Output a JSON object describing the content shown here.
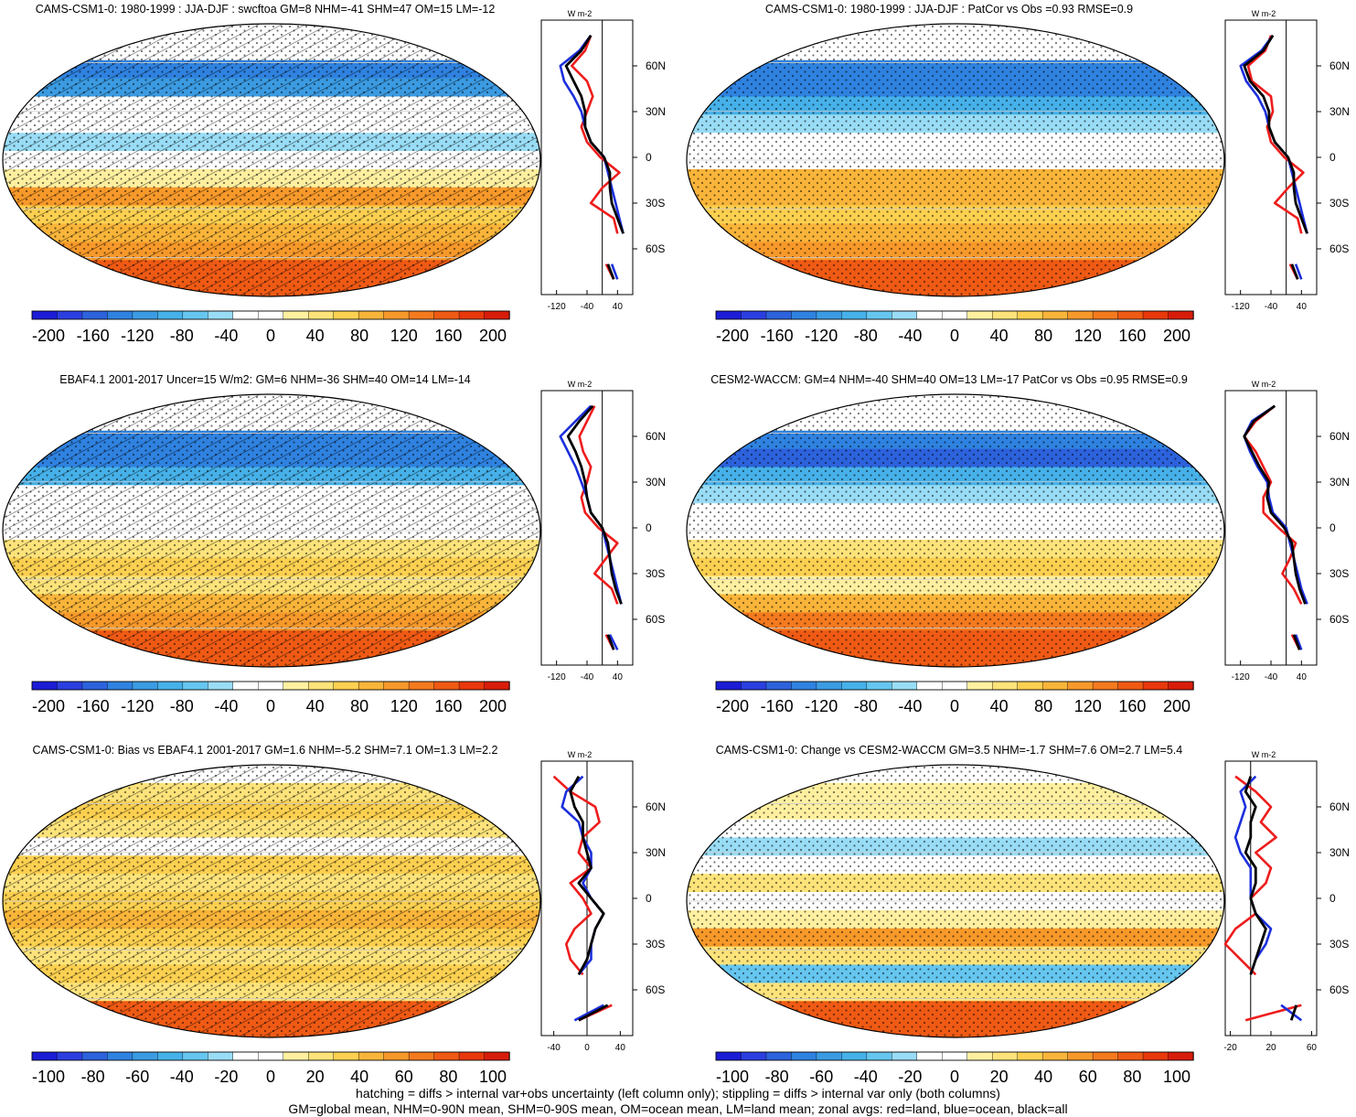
{
  "palette": [
    "#1c1cd6",
    "#2b3fe0",
    "#2c62dc",
    "#2f82e0",
    "#3b9be2",
    "#46b1e9",
    "#66c6ef",
    "#99dcf5",
    "#ffffff",
    "#ffffff",
    "#fff0a0",
    "#fde37a",
    "#fcd050",
    "#f9b53a",
    "#f7992a",
    "#f47a1e",
    "#ef5a14",
    "#e8380c",
    "#d81c0a"
  ],
  "line_colors": {
    "land": "#ee1c1c",
    "ocean": "#1c2fdc",
    "all": "#000000"
  },
  "footnotes": [
    "hatching = diffs > internal var+obs uncertainty (left column only); stippling = diffs > internal var only (both columns)",
    "GM=global mean, NHM=0-90N mean, SHM=0-90S mean, OM=ocean mean, LM=land mean; zonal avgs: red=land, blue=ocean, black=all"
  ],
  "chart_data": [
    {
      "type": "heatmap",
      "title": "CAMS-CSM1-0: 1980-1999 : JJA-DJF : swcftoa GM=8 NHM=-41 SHM=47 OM=15 LM=-12",
      "colorbar_ticks": [
        "-200",
        "-160",
        "-120",
        "-80",
        "-40",
        "0",
        "40",
        "80",
        "120",
        "160",
        "200"
      ],
      "zonal_unit": "W m-2",
      "zonal_x_ticks": [
        "-120",
        "-40",
        "40"
      ],
      "zonal_x_range": [
        -160,
        80
      ],
      "lat_ticks": [
        "60N",
        "30N",
        "0",
        "30S",
        "60S"
      ],
      "hatching": true,
      "stippling": true,
      "zonal_mean": {
        "lat": [
          80,
          70,
          60,
          50,
          40,
          30,
          20,
          10,
          0,
          -10,
          -20,
          -30,
          -40,
          -50,
          -60,
          -70,
          -80
        ],
        "land": [
          -30,
          -45,
          -80,
          -40,
          -25,
          -40,
          -55,
          -40,
          -5,
          45,
          0,
          -30,
          30,
          40,
          null,
          10,
          30
        ],
        "ocean": [
          -30,
          -60,
          -110,
          -100,
          -75,
          -55,
          -45,
          -30,
          5,
          15,
          25,
          35,
          45,
          55,
          null,
          25,
          40
        ],
        "all": [
          -30,
          -55,
          -95,
          -75,
          -55,
          -45,
          -45,
          -30,
          5,
          20,
          20,
          25,
          40,
          55,
          null,
          15,
          30
        ]
      }
    },
    {
      "type": "heatmap",
      "title": "CAMS-CSM1-0: 1980-1999 : JJA-DJF : PatCor vs Obs =0.93 RMSE=0.9",
      "colorbar_ticks": [
        "-200",
        "-160",
        "-120",
        "-80",
        "-40",
        "0",
        "40",
        "80",
        "120",
        "160",
        "200"
      ],
      "zonal_unit": "W m-2",
      "zonal_x_ticks": [
        "-120",
        "-40",
        "40"
      ],
      "zonal_x_range": [
        -160,
        80
      ],
      "lat_ticks": [
        "60N",
        "30N",
        "0",
        "30S",
        "60S"
      ],
      "hatching": false,
      "stippling": true,
      "zonal_mean": {
        "lat": [
          80,
          70,
          60,
          50,
          40,
          30,
          20,
          10,
          0,
          -10,
          -20,
          -30,
          -40,
          -50,
          -60,
          -70,
          -80
        ],
        "land": [
          -40,
          -55,
          -100,
          -90,
          -40,
          -35,
          -50,
          -40,
          -5,
          45,
          5,
          -30,
          30,
          40,
          null,
          10,
          30
        ],
        "ocean": [
          -35,
          -65,
          -120,
          -105,
          -75,
          -55,
          -45,
          -30,
          5,
          15,
          25,
          35,
          45,
          55,
          null,
          25,
          40
        ],
        "all": [
          -35,
          -60,
          -110,
          -95,
          -60,
          -45,
          -45,
          -30,
          5,
          20,
          20,
          25,
          40,
          55,
          null,
          15,
          30
        ]
      }
    },
    {
      "type": "heatmap",
      "title": "EBAF4.1 2001-2017 Uncer=15 W/m2: GM=6 NHM=-36 SHM=40 OM=14 LM=-14",
      "colorbar_ticks": [
        "-200",
        "-160",
        "-120",
        "-80",
        "-40",
        "0",
        "40",
        "80",
        "120",
        "160",
        "200"
      ],
      "zonal_unit": "W m-2",
      "zonal_x_ticks": [
        "-120",
        "-40",
        "40"
      ],
      "zonal_x_range": [
        -160,
        80
      ],
      "lat_ticks": [
        "60N",
        "30N",
        "0",
        "30S",
        "60S"
      ],
      "hatching": true,
      "stippling": true,
      "zonal_mean": {
        "lat": [
          80,
          70,
          60,
          50,
          40,
          30,
          20,
          10,
          0,
          -10,
          -20,
          -30,
          -40,
          -50,
          -60,
          -70,
          -80
        ],
        "land": [
          -20,
          -40,
          -60,
          -50,
          -30,
          -40,
          -55,
          -45,
          -10,
          40,
          10,
          -20,
          25,
          40,
          null,
          10,
          30
        ],
        "ocean": [
          -30,
          -70,
          -110,
          -90,
          -70,
          -55,
          -40,
          -30,
          0,
          10,
          20,
          30,
          40,
          50,
          null,
          20,
          40
        ],
        "all": [
          -25,
          -60,
          -90,
          -70,
          -55,
          -45,
          -40,
          -30,
          0,
          15,
          20,
          25,
          35,
          50,
          null,
          15,
          30
        ]
      }
    },
    {
      "type": "heatmap",
      "title": "CESM2-WACCM: GM=4 NHM=-40 SHM=40 OM=13 LM=-17 PatCor vs Obs =0.95 RMSE=0.9",
      "colorbar_ticks": [
        "-200",
        "-160",
        "-120",
        "-80",
        "-40",
        "0",
        "40",
        "80",
        "120",
        "160",
        "200"
      ],
      "zonal_unit": "W m-2",
      "zonal_x_ticks": [
        "-120",
        "-40",
        "40"
      ],
      "zonal_x_range": [
        -160,
        80
      ],
      "lat_ticks": [
        "60N",
        "30N",
        "0",
        "30S",
        "60S"
      ],
      "hatching": false,
      "stippling": true,
      "zonal_mean": {
        "lat": [
          80,
          70,
          60,
          50,
          40,
          30,
          20,
          10,
          0,
          -10,
          -20,
          -30,
          -40,
          -50,
          -60,
          -70,
          -80
        ],
        "land": [
          -30,
          -80,
          -110,
          -80,
          -60,
          -40,
          -60,
          -60,
          -20,
          25,
          10,
          -10,
          20,
          40,
          null,
          15,
          35
        ],
        "ocean": [
          -30,
          -90,
          -110,
          -95,
          -75,
          -50,
          -45,
          -35,
          0,
          10,
          20,
          30,
          40,
          55,
          null,
          25,
          40
        ],
        "all": [
          -30,
          -85,
          -110,
          -90,
          -70,
          -45,
          -50,
          -40,
          -5,
          15,
          20,
          25,
          35,
          50,
          null,
          20,
          35
        ]
      }
    },
    {
      "type": "heatmap",
      "title": "CAMS-CSM1-0: Bias vs EBAF4.1 2001-2017 GM=1.6 NHM=-5.2 SHM=7.1 OM=1.3 LM=2.2",
      "colorbar_ticks": [
        "-100",
        "-80",
        "-60",
        "-40",
        "-20",
        "0",
        "20",
        "40",
        "60",
        "80",
        "100"
      ],
      "zonal_unit": "W m-2",
      "zonal_x_ticks": [
        "-40",
        "0",
        "40"
      ],
      "zonal_x_range": [
        -55,
        55
      ],
      "lat_ticks": [
        "60N",
        "30N",
        "0",
        "30S",
        "60S"
      ],
      "hatching": true,
      "stippling": true,
      "zonal_mean": {
        "lat": [
          80,
          70,
          60,
          50,
          40,
          30,
          20,
          10,
          0,
          -10,
          -20,
          -30,
          -40,
          -50,
          -60,
          -70,
          -80
        ],
        "land": [
          -40,
          -20,
          10,
          15,
          -5,
          -10,
          5,
          -20,
          -5,
          5,
          -15,
          -25,
          -20,
          -5,
          null,
          30,
          -10
        ],
        "ocean": [
          -5,
          -25,
          -30,
          -10,
          -5,
          5,
          5,
          -5,
          5,
          20,
          10,
          5,
          5,
          -10,
          null,
          20,
          -15
        ],
        "all": [
          -10,
          -20,
          -15,
          -5,
          -5,
          0,
          5,
          -10,
          5,
          20,
          10,
          5,
          0,
          -10,
          null,
          25,
          -10
        ]
      }
    },
    {
      "type": "heatmap",
      "title": "CAMS-CSM1-0: Change vs CESM2-WACCM GM=3.5 NHM=-1.7 SHM=7.6 OM=2.7 LM=5.4",
      "colorbar_ticks": [
        "-100",
        "-80",
        "-60",
        "-40",
        "-20",
        "0",
        "20",
        "40",
        "60",
        "80",
        "100"
      ],
      "zonal_unit": "W m-2",
      "zonal_x_ticks": [
        "-20",
        "20",
        "60"
      ],
      "zonal_x_range": [
        -25,
        65
      ],
      "lat_ticks": [
        "60N",
        "30N",
        "0",
        "30S",
        "60S"
      ],
      "hatching": false,
      "stippling": true,
      "zonal_mean": {
        "lat": [
          80,
          70,
          60,
          50,
          40,
          30,
          20,
          10,
          0,
          -10,
          -20,
          -30,
          -40,
          -50,
          -60,
          -70,
          -80
        ],
        "land": [
          -15,
          5,
          20,
          10,
          25,
          5,
          20,
          15,
          0,
          5,
          -15,
          -25,
          -10,
          5,
          null,
          50,
          -5
        ],
        "ocean": [
          5,
          -10,
          -5,
          -10,
          -15,
          -10,
          0,
          0,
          0,
          5,
          20,
          15,
          5,
          0,
          null,
          30,
          50
        ],
        "all": [
          0,
          -5,
          5,
          0,
          0,
          -5,
          5,
          5,
          0,
          5,
          15,
          10,
          5,
          0,
          null,
          45,
          40
        ]
      }
    }
  ]
}
